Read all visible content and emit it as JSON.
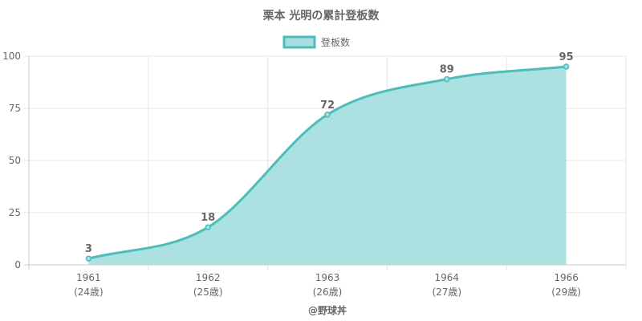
{
  "chart_data": {
    "type": "area",
    "title": "栗本 光明の累計登板数",
    "legend": {
      "label": "登板数",
      "position": "top"
    },
    "series": [
      {
        "name": "登板数",
        "values": [
          3,
          18,
          72,
          89,
          95
        ]
      }
    ],
    "categories": [
      {
        "year": "1961",
        "age": "(24歳)"
      },
      {
        "year": "1962",
        "age": "(25歳)"
      },
      {
        "year": "1963",
        "age": "(26歳)"
      },
      {
        "year": "1964",
        "age": "(27歳)"
      },
      {
        "year": "1966",
        "age": "(29歳)"
      }
    ],
    "y_ticks": [
      0,
      25,
      50,
      75,
      100
    ],
    "ylim": [
      0,
      100
    ],
    "grid": true,
    "colors": {
      "line": "#4dbdb9",
      "fill": "#a6dfdf"
    }
  },
  "footer": {
    "credit": "@野球丼"
  }
}
